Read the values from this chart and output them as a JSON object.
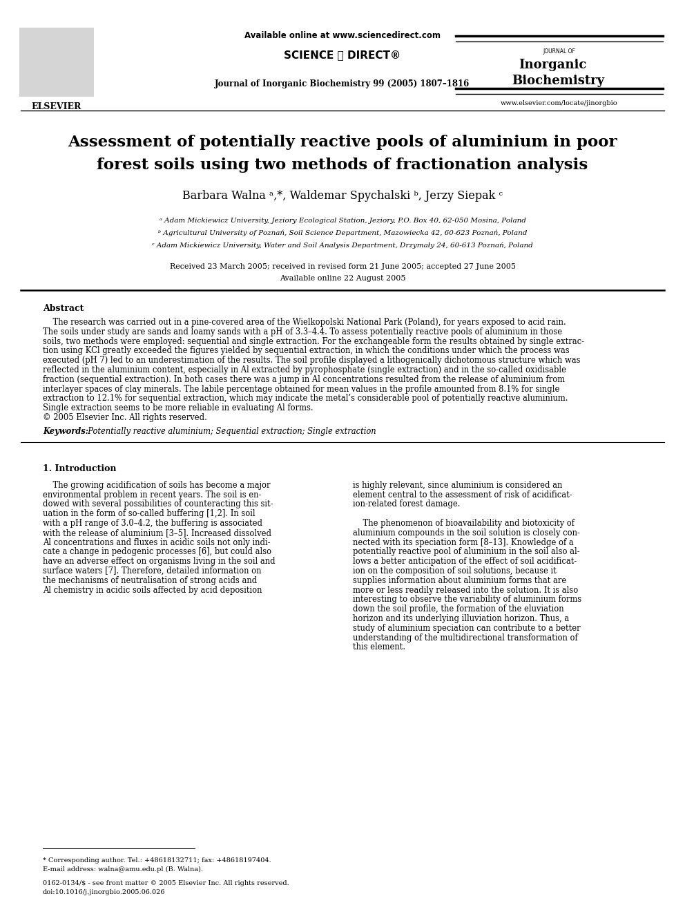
{
  "bg_color": "#ffffff",
  "title_line1": "Assessment of potentially reactive pools of aluminium in poor",
  "title_line2": "forest soils using two methods of fractionation analysis",
  "authors": "Barbara Walna ᵃ,*, Waldemar Spychalski ᵇ, Jerzy Siepak ᶜ",
  "affil_a": "ᵃ Adam Mickiewicz University, Jeziory Ecological Station, Jeziory, P.O. Box 40, 62-050 Mosina, Poland",
  "affil_b": "ᵇ Agricultural University of Poznań, Soil Science Department, Mazowiecka 42, 60-623 Poznań, Poland",
  "affil_c": "ᶜ Adam Mickiewicz University, Water and Soil Analysis Department, Drzymały 24, 60-613 Poznań, Poland",
  "received": "Received 23 March 2005; received in revised form 21 June 2005; accepted 27 June 2005",
  "available": "Available online 22 August 2005",
  "header_online": "Available online at www.sciencedirect.com",
  "header_journal": "Journal of Inorganic Biochemistry 99 (2005) 1807–1816",
  "header_website": "www.elsevier.com/locate/jinorgbio",
  "journal_of": "JOURNAL OF",
  "journal_name_line2": "Inorganic",
  "journal_name_line3": "Biochemistry",
  "sciencedirect_text": "SCIENCE ⓐ DIRECT®",
  "abstract_title": "Abstract",
  "abstract_lines": [
    "    The research was carried out in a pine-covered area of the Wielkopolski National Park (Poland), for years exposed to acid rain.",
    "The soils under study are sands and loamy sands with a pH of 3.3–4.4. To assess potentially reactive pools of aluminium in those",
    "soils, two methods were employed: sequential and single extraction. For the exchangeable form the results obtained by single extrac-",
    "tion using KCl greatly exceeded the figures yielded by sequential extraction, in which the conditions under which the process was",
    "executed (pH 7) led to an underestimation of the results. The soil profile displayed a lithogenically dichotomous structure which was",
    "reflected in the aluminium content, especially in Al extracted by pyrophosphate (single extraction) and in the so-called oxidisable",
    "fraction (sequential extraction). In both cases there was a jump in Al concentrations resulted from the release of aluminium from",
    "interlayer spaces of clay minerals. The labile percentage obtained for mean values in the profile amounted from 8.1% for single",
    "extraction to 12.1% for sequential extraction, which may indicate the metal’s considerable pool of potentially reactive aluminium.",
    "Single extraction seems to be more reliable in evaluating Al forms.",
    "© 2005 Elsevier Inc. All rights reserved."
  ],
  "keywords_label": "Keywords:",
  "keywords_text": "  Potentially reactive aluminium; Sequential extraction; Single extraction",
  "section1_title": "1. Introduction",
  "col1_lines": [
    "    The growing acidification of soils has become a major",
    "environmental problem in recent years. The soil is en-",
    "dowed with several possibilities of counteracting this sit-",
    "uation in the form of so-called buffering [1,2]. In soil",
    "with a pH range of 3.0–4.2, the buffering is associated",
    "with the release of aluminium [3–5]. Increased dissolved",
    "Al concentrations and fluxes in acidic soils not only indi-",
    "cate a change in pedogenic processes [6], but could also",
    "have an adverse effect on organisms living in the soil and",
    "surface waters [7]. Therefore, detailed information on",
    "the mechanisms of neutralisation of strong acids and",
    "Al chemistry in acidic soils affected by acid deposition"
  ],
  "col2_lines": [
    "is highly relevant, since aluminium is considered an",
    "element central to the assessment of risk of acidificat-",
    "ion-related forest damage.",
    "",
    "    The phenomenon of bioavailability and biotoxicity of",
    "aluminium compounds in the soil solution is closely con-",
    "nected with its speciation form [8–13]. Knowledge of a",
    "potentially reactive pool of aluminium in the soil also al-",
    "lows a better anticipation of the effect of soil acidificat-",
    "ion on the composition of soil solutions, because it",
    "supplies information about aluminium forms that are",
    "more or less readily released into the solution. It is also",
    "interesting to observe the variability of aluminium forms",
    "down the soil profile, the formation of the eluviation",
    "horizon and its underlying illuviation horizon. Thus, a",
    "study of aluminium speciation can contribute to a better",
    "understanding of the multidirectional transformation of",
    "this element."
  ],
  "footnote_corresponding": "* Corresponding author. Tel.: +48618132711; fax: +48618197404.",
  "footnote_email": "E-mail address: walna@amu.edu.pl (B. Walna).",
  "footnote_issn": "0162-0134/$ - see front matter © 2005 Elsevier Inc. All rights reserved.",
  "footnote_doi": "doi:10.1016/j.jinorgbio.2005.06.026"
}
